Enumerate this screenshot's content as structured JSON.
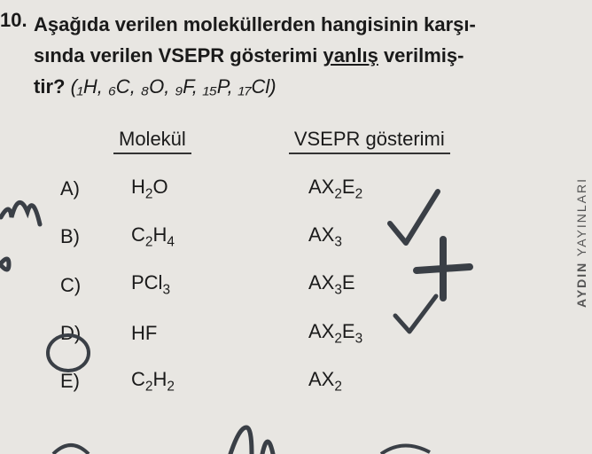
{
  "question": {
    "number": "10.",
    "text_line1": "Aşağıda verilen moleküllerden hangisinin karşı-",
    "text_line2_a": "sında verilen  VSEPR  gösterimi ",
    "text_line2_underline": "yanlış",
    "text_line2_b": " verilmiş-",
    "text_line3": "tir?",
    "atomic_html": "(₁H,  ₆C,  ₈O,  ₉F,  ₁₅P,  ₁₇Cl)"
  },
  "headers": {
    "col1": "Molekül",
    "col2": "VSEPR gösterimi"
  },
  "rows": [
    {
      "label": "A)",
      "mol_html": "H<sub>2</sub>O",
      "vsepr_html": "AX<sub>2</sub>E<sub>2</sub>"
    },
    {
      "label": "B)",
      "mol_html": "C<sub>2</sub>H<sub>4</sub>",
      "vsepr_html": "AX<sub>3</sub>"
    },
    {
      "label": "C)",
      "mol_html": "PCl<sub>3</sub>",
      "vsepr_html": "AX<sub>3</sub>E"
    },
    {
      "label": "D)",
      "mol_html": "HF",
      "vsepr_html": "AX<sub>2</sub>E<sub>3</sub>"
    },
    {
      "label": "E)",
      "mol_html": "C<sub>2</sub>H<sub>2</sub>",
      "vsepr_html": "AX<sub>2</sub>"
    }
  ],
  "sidebar": {
    "bold": "AYDIN",
    "rest": " YAYINLARI"
  },
  "annotations": {
    "stroke_color": "#3a3f46",
    "stroke_width": 4
  }
}
